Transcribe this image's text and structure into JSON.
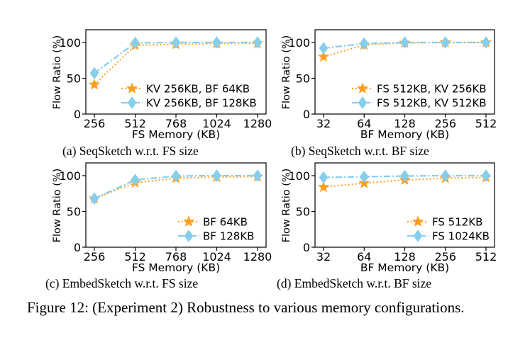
{
  "figure": {
    "caption": "Figure 12: (Experiment 2) Robustness to various memory configurations."
  },
  "colors": {
    "orange": "#ff9e1b",
    "blue": "#87ceeb",
    "axis": "#000000"
  },
  "chart_data": [
    {
      "type": "line",
      "caption": "(a) SeqSketch w.r.t. FS size",
      "xlabel": "FS Memory (KB)",
      "ylabel": "Flow Ratio (%)",
      "categories": [
        "256",
        "512",
        "768",
        "1024",
        "1280"
      ],
      "ylim": [
        0,
        100
      ],
      "yticks": [
        0,
        50,
        100
      ],
      "legend_position": "lower-right",
      "series": [
        {
          "name": "KV 256KB, BF 64KB",
          "color": "#ff9e1b",
          "marker": "star",
          "linestyle": "dotted",
          "values": [
            41,
            96,
            97.5,
            98.5,
            99
          ]
        },
        {
          "name": "KV 256KB, BF 128KB",
          "color": "#87ceeb",
          "marker": "diamond",
          "linestyle": "dashdot",
          "values": [
            57,
            99.5,
            100,
            100,
            100
          ]
        }
      ]
    },
    {
      "type": "line",
      "caption": "(b) SeqSketch w.r.t. BF size",
      "xlabel": "BF Memory (KB)",
      "ylabel": "Flow Ratio (%)",
      "categories": [
        "32",
        "64",
        "128",
        "256",
        "512"
      ],
      "ylim": [
        0,
        100
      ],
      "yticks": [
        0,
        50,
        100
      ],
      "legend_position": "lower-right",
      "series": [
        {
          "name": "FS 512KB, KV 256KB",
          "color": "#ff9e1b",
          "marker": "star",
          "linestyle": "dotted",
          "values": [
            80,
            96.5,
            99.5,
            100,
            100
          ]
        },
        {
          "name": "FS 512KB, KV 512KB",
          "color": "#87ceeb",
          "marker": "diamond",
          "linestyle": "dashdot",
          "values": [
            92,
            98.5,
            100,
            100,
            100
          ]
        }
      ]
    },
    {
      "type": "line",
      "caption": "(c) EmbedSketch w.r.t. FS size",
      "xlabel": "FS Memory (KB)",
      "ylabel": "Flow Ratio (%)",
      "categories": [
        "256",
        "512",
        "768",
        "1024",
        "1280"
      ],
      "ylim": [
        0,
        100
      ],
      "yticks": [
        0,
        50,
        100
      ],
      "legend_position": "lower-right",
      "series": [
        {
          "name": "BF 64KB",
          "color": "#ff9e1b",
          "marker": "star",
          "linestyle": "dotted",
          "values": [
            68,
            90,
            96.5,
            98,
            98.5
          ]
        },
        {
          "name": "BF 128KB",
          "color": "#87ceeb",
          "marker": "diamond",
          "linestyle": "dashdot",
          "values": [
            68,
            94,
            99.5,
            100,
            100
          ]
        }
      ]
    },
    {
      "type": "line",
      "caption": "(d) EmbedSketch w.r.t. BF size",
      "xlabel": "BF Memory (KB)",
      "ylabel": "Flow Ratio (%)",
      "categories": [
        "32",
        "64",
        "128",
        "256",
        "512"
      ],
      "ylim": [
        0,
        100
      ],
      "yticks": [
        0,
        50,
        100
      ],
      "legend_position": "lower-right",
      "series": [
        {
          "name": "FS 512KB",
          "color": "#ff9e1b",
          "marker": "star",
          "linestyle": "dotted",
          "values": [
            84,
            89.5,
            94,
            96.5,
            97.5
          ]
        },
        {
          "name": "FS 1024KB",
          "color": "#87ceeb",
          "marker": "diamond",
          "linestyle": "dashdot",
          "values": [
            97.5,
            98.5,
            99.5,
            100,
            100
          ]
        }
      ]
    }
  ]
}
